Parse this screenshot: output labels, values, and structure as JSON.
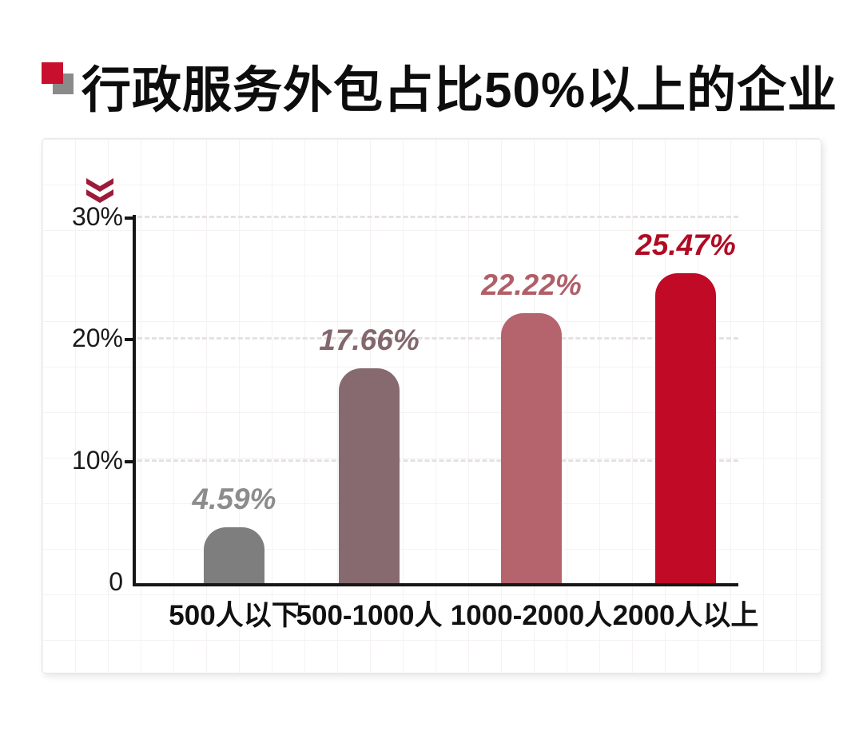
{
  "header": {
    "title": "行政服务外包占比50%以上的企业"
  },
  "icons": {
    "bullet": "overlapping-squares-icon",
    "chevron": "double-chevron-down-icon"
  },
  "colors": {
    "accent_red": "#c00a26",
    "chevron_maroon": "#9c1b38",
    "bullet_red": "#c8102e",
    "bullet_gray": "#8a8a8a",
    "axis": "#161616",
    "gridline": "#e6e1e1"
  },
  "chart_data": {
    "type": "bar",
    "title": "行政服务外包占比50%以上的企业",
    "categories": [
      "500人以下",
      "500-1000人",
      "1000-2000人",
      "2000人以上"
    ],
    "values": [
      4.59,
      17.66,
      22.22,
      25.47
    ],
    "value_labels": [
      "4.59%",
      "17.66%",
      "22.22%",
      "25.47%"
    ],
    "bar_colors": [
      "#7e7e7e",
      "#866a6f",
      "#b5636c",
      "#c00a26"
    ],
    "label_colors": [
      "#8c8c8c",
      "#82686d",
      "#b05f68",
      "#b00b24"
    ],
    "xlabel": "",
    "ylabel": "",
    "ylim": [
      0,
      30.5
    ],
    "yticks": [
      {
        "value": 0,
        "label": "0"
      },
      {
        "value": 10,
        "label": "10%"
      },
      {
        "value": 20,
        "label": "20%"
      },
      {
        "value": 30,
        "label": "30%"
      }
    ],
    "grid": "dashed horizontal lines at 10%, 20%, 30%",
    "legend_position": "none"
  }
}
